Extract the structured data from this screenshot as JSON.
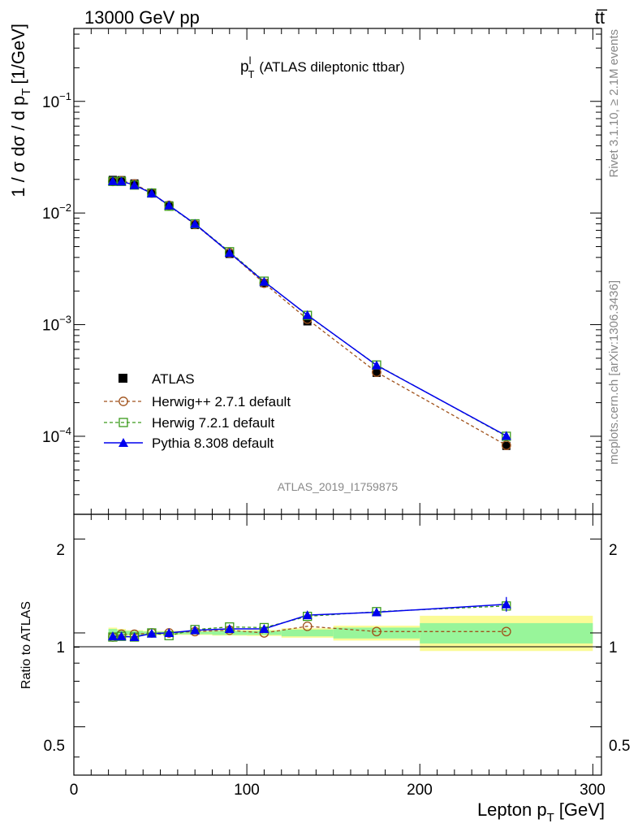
{
  "header": {
    "energy_label": "13000 GeV pp",
    "process_label": "tt̅"
  },
  "side_labels": {
    "rivet": "Rivet 3.1.10, ≥ 2.1M events",
    "mcplots": "mcplots.cern.ch [arXiv:1306.3436]"
  },
  "main_plot": {
    "title_main": "p",
    "title_sup": "l",
    "title_sub": "T",
    "title_rest": "(ATLAS dileptonic ttbar)",
    "ylabel": "1 / σ  dσ / d p",
    "ylabel_sub": "T",
    "ylabel_unit": "[1/GeV]",
    "analysis_id": "ATLAS_2019_I1759875",
    "y_ticks": [
      {
        "base": "10",
        "exp": "−1",
        "value": 0.1
      },
      {
        "base": "10",
        "exp": "−2",
        "value": 0.01
      },
      {
        "base": "10",
        "exp": "−3",
        "value": 0.001
      },
      {
        "base": "10",
        "exp": "−4",
        "value": 0.0001
      }
    ]
  },
  "legend": {
    "entries": [
      {
        "label": "ATLAS",
        "key": "data"
      },
      {
        "label": "Herwig++ 2.7.1 default",
        "key": "herwigpp"
      },
      {
        "label": "Herwig 7.2.1 default",
        "key": "herwig7"
      },
      {
        "label": "Pythia 8.308 default",
        "key": "pythia"
      }
    ]
  },
  "ratio_plot": {
    "ylabel": "Ratio to ATLAS",
    "y_ticks_left": [
      "2",
      "1",
      "0.5"
    ],
    "y_ticks_right": [
      "2",
      "1",
      "0.5"
    ]
  },
  "x_axis": {
    "label_main": "Lepton p",
    "label_sub": "T",
    "label_unit": "[GeV]",
    "ticks": [
      "0",
      "100",
      "200",
      "300"
    ]
  },
  "colors": {
    "data": "#000000",
    "herwigpp": "#a0521b",
    "herwig7": "#3a9a1a",
    "pythia": "#0000ee",
    "band_inner": "#98f59a",
    "band_outer": "#fbfb96"
  },
  "chart_data": {
    "type": "line",
    "x_scale": "linear",
    "y_scale": "log",
    "xlim": [
      0,
      305
    ],
    "ylim": [
      2e-05,
      0.45
    ],
    "ratio_ylim": [
      0.35,
      2.4
    ],
    "ratio_scale": "log",
    "x": [
      22.5,
      27.5,
      35,
      45,
      55,
      70,
      90,
      110,
      135,
      175,
      250
    ],
    "series": [
      {
        "name": "ATLAS",
        "style": "markers",
        "values": [
          0.0198,
          0.0197,
          0.0184,
          0.0151,
          0.0117,
          0.0078,
          0.0043,
          0.00236,
          0.00107,
          0.00037,
          8.2e-05
        ]
      },
      {
        "name": "Herwig++ 2.7.1 default",
        "style": "dashed",
        "values": [
          0.0192,
          0.0195,
          0.0182,
          0.0151,
          0.0117,
          0.0079,
          0.0044,
          0.00235,
          0.00112,
          0.000375,
          8.3e-05
        ]
      },
      {
        "name": "Herwig 7.2.1 default",
        "style": "dashed",
        "values": [
          0.0192,
          0.0192,
          0.0178,
          0.0151,
          0.0115,
          0.008,
          0.0045,
          0.00245,
          0.00121,
          0.000435,
          0.0001
        ]
      },
      {
        "name": "Pythia 8.308 default",
        "style": "solid",
        "values": [
          0.0193,
          0.0192,
          0.0178,
          0.015,
          0.0117,
          0.008,
          0.0044,
          0.00243,
          0.00122,
          0.000432,
          0.000101
        ]
      }
    ],
    "ratios": [
      {
        "name": "Herwig++ 2.7.1 default",
        "values": [
          0.97,
          0.99,
          0.99,
          1.0,
          1.0,
          1.01,
          1.02,
          1.0,
          1.05,
          1.01,
          1.01
        ]
      },
      {
        "name": "Herwig 7.2.1 default",
        "values": [
          0.97,
          0.975,
          0.97,
          1.0,
          0.98,
          1.025,
          1.045,
          1.04,
          1.13,
          1.17,
          1.22
        ]
      },
      {
        "name": "Pythia 8.308 default",
        "values": [
          0.975,
          0.975,
          0.97,
          0.995,
          1.0,
          1.02,
          1.03,
          1.03,
          1.14,
          1.165,
          1.235
        ]
      }
    ],
    "uncertainty_bands": [
      {
        "x_low": 20,
        "x_high": 25,
        "inner": [
          0.97,
          1.03
        ],
        "outer": [
          0.96,
          1.04
        ]
      },
      {
        "x_low": 25,
        "x_high": 30,
        "inner": [
          0.98,
          1.02
        ],
        "outer": [
          0.97,
          1.03
        ]
      },
      {
        "x_low": 30,
        "x_high": 40,
        "inner": [
          0.985,
          1.015
        ],
        "outer": [
          0.98,
          1.02
        ]
      },
      {
        "x_low": 40,
        "x_high": 50,
        "inner": [
          0.99,
          1.01
        ],
        "outer": [
          0.985,
          1.015
        ]
      },
      {
        "x_low": 50,
        "x_high": 60,
        "inner": [
          0.99,
          1.01
        ],
        "outer": [
          0.985,
          1.015
        ]
      },
      {
        "x_low": 60,
        "x_high": 80,
        "inner": [
          0.99,
          1.01
        ],
        "outer": [
          0.985,
          1.015
        ]
      },
      {
        "x_low": 80,
        "x_high": 100,
        "inner": [
          0.985,
          1.015
        ],
        "outer": [
          0.98,
          1.02
        ]
      },
      {
        "x_low": 100,
        "x_high": 120,
        "inner": [
          0.985,
          1.015
        ],
        "outer": [
          0.978,
          1.022
        ]
      },
      {
        "x_low": 120,
        "x_high": 150,
        "inner": [
          0.975,
          1.025
        ],
        "outer": [
          0.965,
          1.035
        ]
      },
      {
        "x_low": 150,
        "x_high": 200,
        "inner": [
          0.96,
          1.04
        ],
        "outer": [
          0.945,
          1.055
        ]
      },
      {
        "x_low": 200,
        "x_high": 300,
        "inner": [
          0.925,
          1.075
        ],
        "outer": [
          0.875,
          1.135
        ]
      }
    ]
  }
}
